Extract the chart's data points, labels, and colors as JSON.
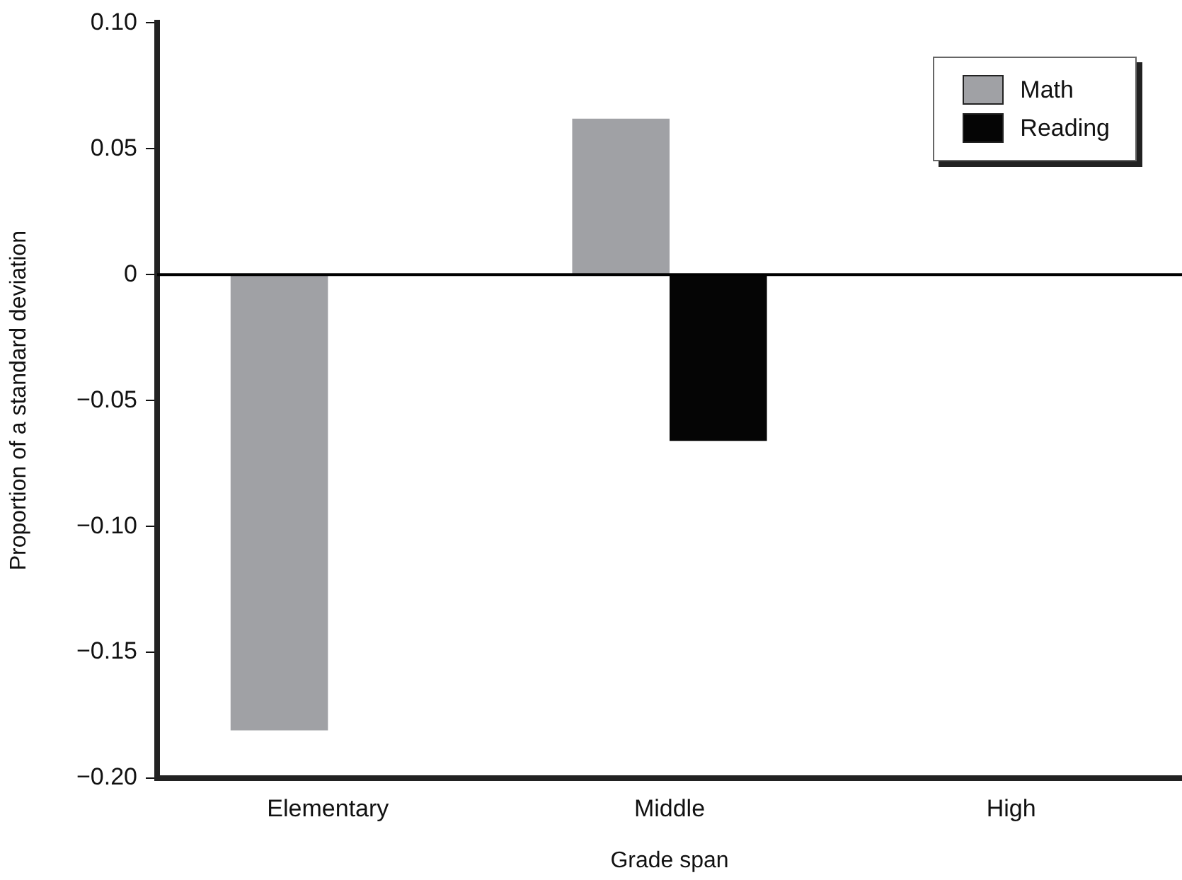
{
  "chart_data": {
    "type": "bar",
    "xlabel": "Grade span",
    "ylabel": "Proportion of a standard deviation",
    "categories": [
      "Elementary",
      "Middle",
      "High"
    ],
    "series": [
      {
        "name": "Math",
        "color": "#a0a1a5",
        "values": [
          -0.181,
          0.062,
          null
        ]
      },
      {
        "name": "Reading",
        "color": "#050505",
        "values": [
          null,
          -0.066,
          null
        ]
      }
    ],
    "ylim": [
      -0.2,
      0.1
    ],
    "yticks": [
      {
        "value": -0.2,
        "label": "−0.20"
      },
      {
        "value": -0.15,
        "label": "−0.15"
      },
      {
        "value": -0.1,
        "label": "−0.10"
      },
      {
        "value": -0.05,
        "label": "−0.05"
      },
      0,
      0.05,
      {
        "value": 0.1,
        "label": "0.10"
      }
    ],
    "ref_lines": [
      {
        "axis": "y",
        "value": 0,
        "color": "#000000"
      }
    ],
    "legend": "top right"
  }
}
